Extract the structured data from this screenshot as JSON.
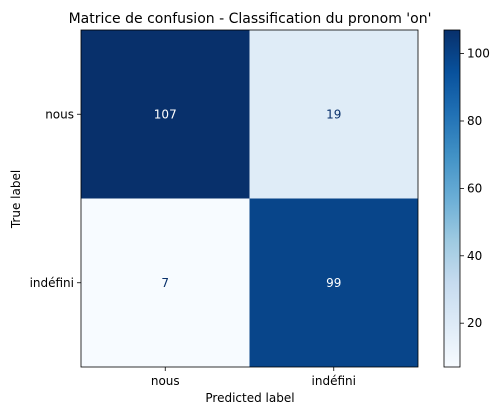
{
  "chart_data": {
    "type": "heatmap",
    "title": "Matrice de confusion - Classification du pronom 'on'",
    "xlabel": "Predicted label",
    "ylabel": "True label",
    "x_categories": [
      "nous",
      "indéfini"
    ],
    "y_categories": [
      "nous",
      "indéfini"
    ],
    "values": [
      [
        107,
        19
      ],
      [
        7,
        99
      ]
    ],
    "colormap": "Blues",
    "colorbar": {
      "range": [
        7,
        107
      ],
      "ticks": [
        20,
        40,
        60,
        80,
        100
      ]
    },
    "colors": {
      "max": "#08306b",
      "high": "#08468f",
      "low": "#dbe9f6",
      "min": "#f7fbff",
      "text_on_dark": "#ffffff",
      "text_on_light": "#08306b"
    }
  }
}
